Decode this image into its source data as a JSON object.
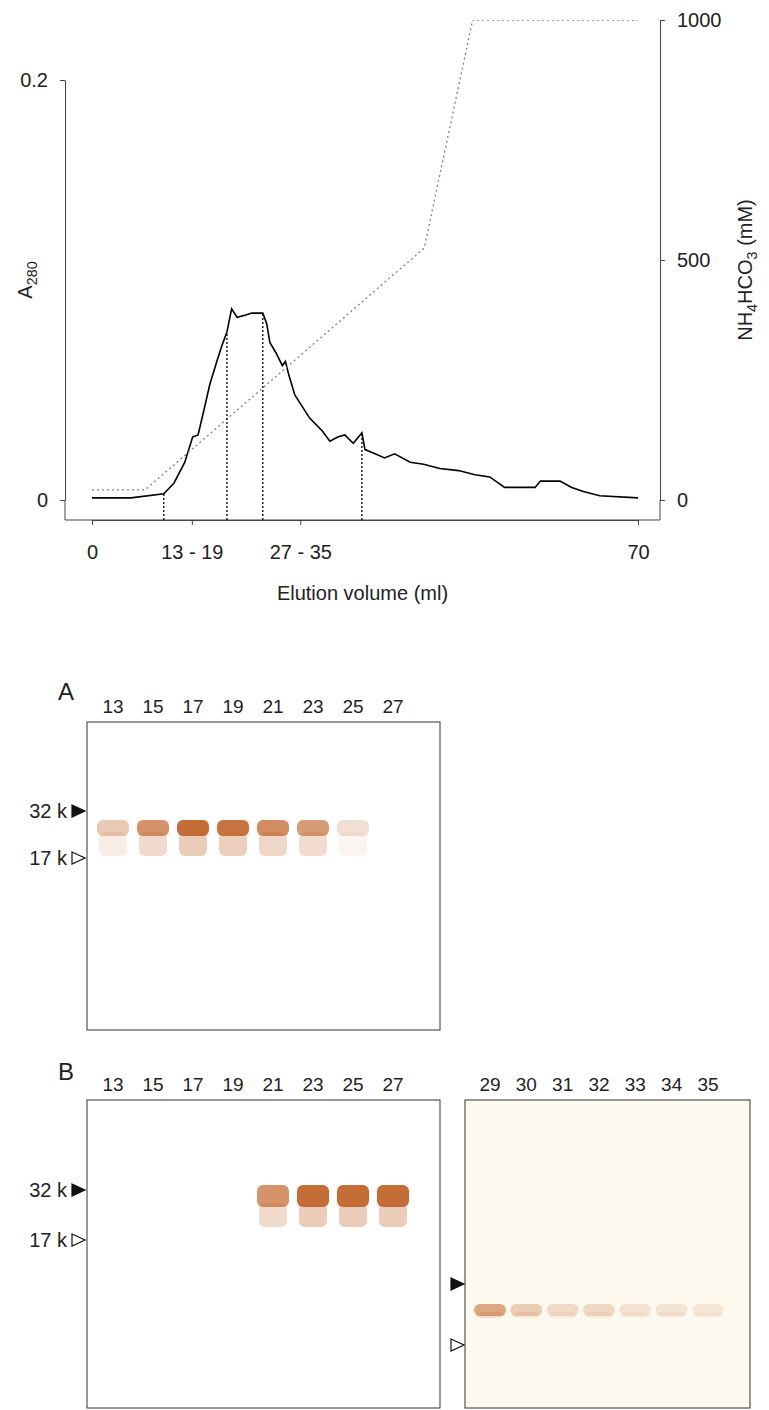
{
  "chart_data": {
    "type": "line",
    "x_label": "Elution volume (ml)",
    "y_label": "A280",
    "y2_label": "NH4HCO3 (mM)",
    "xlim": [
      0,
      70
    ],
    "xticks": [
      0,
      {
        "value": 12.8,
        "label": "13 - 19"
      },
      {
        "value": 26.7,
        "label": "27 - 35"
      },
      70
    ],
    "ylim": [
      0,
      0.2
    ],
    "yticks": [
      0,
      0.2
    ],
    "y2lim": [
      0,
      1000
    ],
    "y2ticks": [
      0,
      500,
      1000
    ],
    "series": [
      {
        "color": "#000000",
        "line_style": "solid",
        "x": [
          0,
          5,
          9.2,
          10.5,
          11.9,
          12.9,
          13.6,
          14.3,
          15.1,
          16.0,
          16.7,
          17.3,
          17.9,
          18.6,
          19.6,
          20.5,
          21.9,
          22.4,
          22.8,
          23.6,
          24.4,
          24.8,
          25.2,
          26.0,
          27.9,
          29.5,
          30.5,
          31.5,
          32.4,
          33.5,
          34.6,
          35.0,
          36.3,
          37.5,
          38.8,
          40.8,
          42.5,
          44.6,
          47.0,
          49.1,
          51.0,
          52.9,
          55.0,
          56.8,
          57.5,
          60.0,
          61.5,
          63.0,
          65.1,
          70
        ],
        "values": [
          0.001,
          0.001,
          0.003,
          0.008,
          0.018,
          0.03,
          0.031,
          0.042,
          0.055,
          0.066,
          0.074,
          0.08,
          0.091,
          0.087,
          0.088,
          0.089,
          0.089,
          0.084,
          0.075,
          0.07,
          0.064,
          0.066,
          0.06,
          0.05,
          0.039,
          0.033,
          0.028,
          0.03,
          0.031,
          0.027,
          0.032,
          0.024,
          0.022,
          0.02,
          0.022,
          0.018,
          0.017,
          0.015,
          0.014,
          0.012,
          0.011,
          0.006,
          0.006,
          0.006,
          0.009,
          0.009,
          0.006,
          0.004,
          0.002,
          0.001
        ]
      },
      {
        "axis": "y2",
        "color": "#808080",
        "line_style": "dotted",
        "x": [
          0,
          6.8,
          42.6,
          48.8,
          70
        ],
        "values": [
          21,
          21,
          525,
          1000,
          1000
        ]
      }
    ],
    "fraction_bounds": [
      9.2,
      17.3,
      21.9,
      34.6
    ]
  },
  "panels": [
    {
      "label": "A",
      "gels": [
        {
          "color": "#c2652c",
          "lanes": [
            13,
            15,
            17,
            19,
            21,
            23,
            25,
            27
          ],
          "intensity": [
            0.35,
            0.7,
            0.95,
            0.9,
            0.75,
            0.65,
            0.2,
            0
          ],
          "marker_labels": [
            "32 k",
            "17 k"
          ]
        }
      ]
    },
    {
      "label": "B",
      "gels": [
        {
          "color": "#c2652c",
          "lanes": [
            13,
            15,
            17,
            19,
            21,
            23,
            25,
            27
          ],
          "intensity": [
            0,
            0,
            0,
            0,
            0.7,
            0.95,
            0.95,
            0.95
          ],
          "marker_labels": [
            "32 k",
            "17 k"
          ]
        },
        {
          "color": "#c2652c",
          "lanes": [
            29,
            30,
            31,
            32,
            33,
            34,
            35
          ],
          "intensity": [
            0.55,
            0.3,
            0.2,
            0.22,
            0.15,
            0.15,
            0.12
          ]
        }
      ]
    }
  ]
}
